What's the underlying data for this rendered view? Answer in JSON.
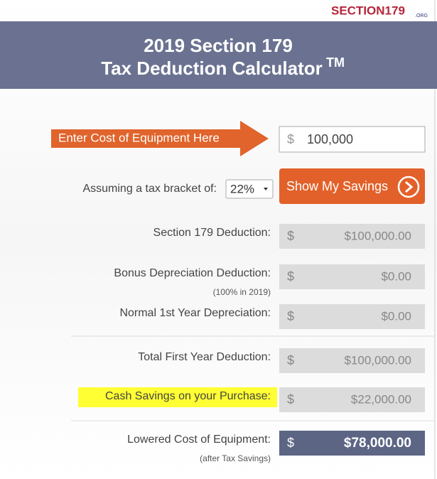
{
  "logo": {
    "name": "SECTION179",
    "suffix": ".ORG"
  },
  "header": {
    "title_line1": "2019 Section 179",
    "title_line2": "Tax Deduction Calculator",
    "trademark": "TM"
  },
  "input": {
    "label": "Enter Cost of Equipment Here",
    "currency": "$",
    "value": "100,000"
  },
  "bracket": {
    "label": "Assuming a tax bracket of:",
    "value": "22%"
  },
  "button": {
    "label": "Show My Savings"
  },
  "rows": [
    {
      "label": "Section 179 Deduction:",
      "currency": "$",
      "value": "$100,000.00"
    },
    {
      "label": "Bonus Depreciation Deduction:",
      "sublabel": "(100% in 2019)",
      "currency": "$",
      "value": "$0.00"
    },
    {
      "label": "Normal 1st Year Depreciation:",
      "currency": "$",
      "value": "$0.00"
    },
    {
      "label": "Total First Year Deduction:",
      "currency": "$",
      "value": "$100,000.00"
    },
    {
      "label": "Cash Savings on your Purchase:",
      "currency": "$",
      "value": "$22,000.00"
    },
    {
      "label": "Lowered Cost of Equipment:",
      "sublabel": "(after Tax Savings)",
      "currency": "$",
      "value": "$78,000.00"
    }
  ]
}
